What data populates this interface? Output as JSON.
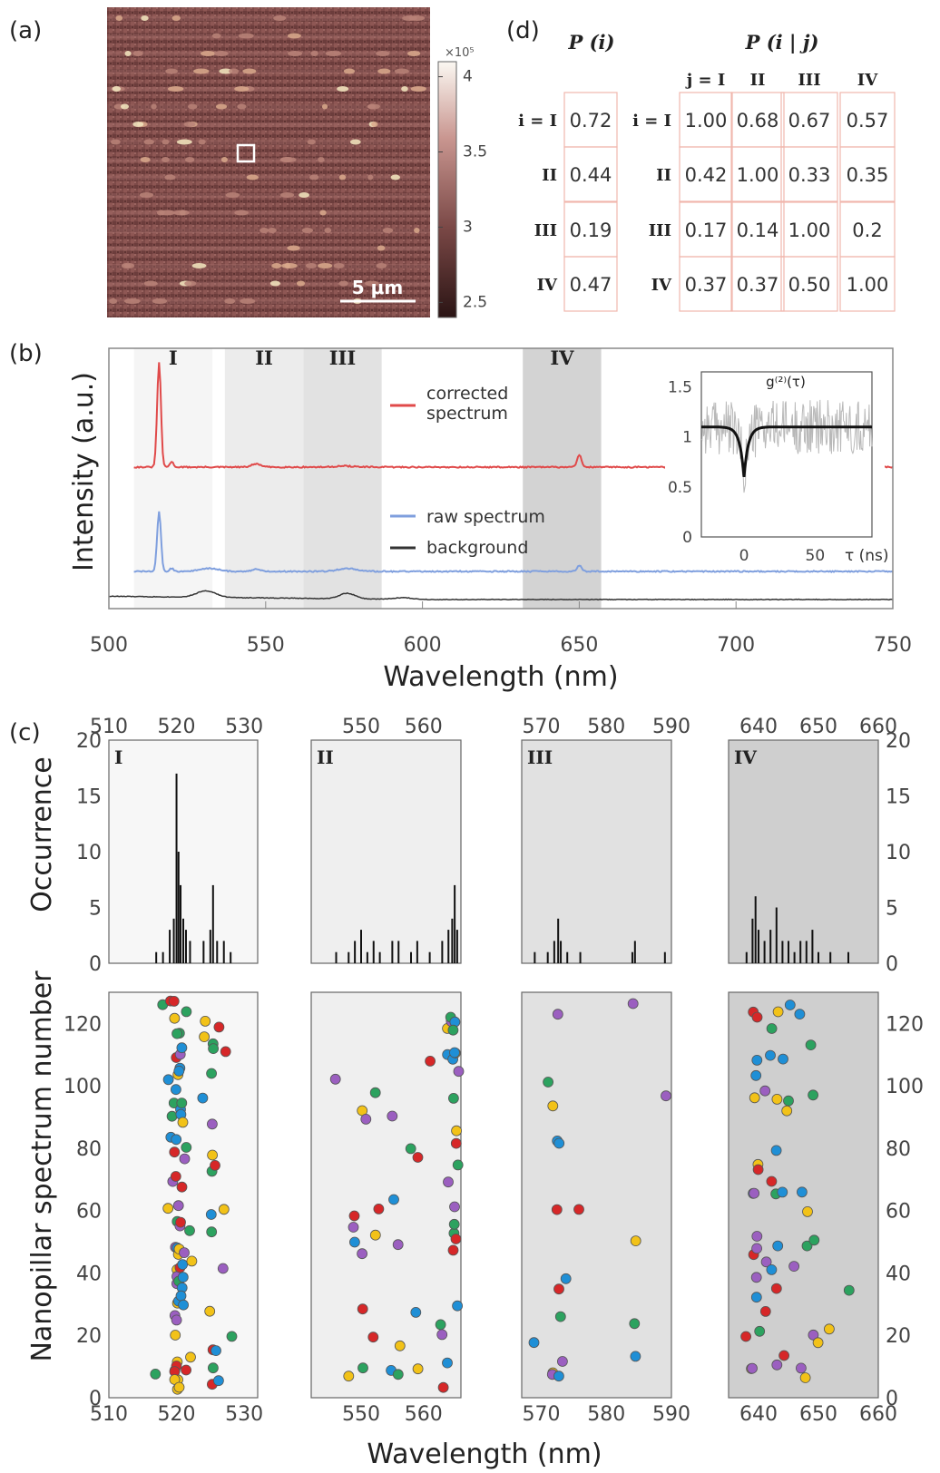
{
  "panels": {
    "a": "(a)",
    "b": "(b)",
    "c": "(c)",
    "d": "(d)"
  },
  "colors": {
    "red": "#d62728",
    "blue": "#1f8fd6",
    "yellow": "#f2c218",
    "green": "#2ca25f",
    "purple": "#9b5fc0",
    "corrected": "#e04a4a",
    "raw": "#7f9fde",
    "background": "#333333",
    "table_border": "#f1b7ad"
  },
  "chart_data": [
    {
      "type": "heatmap",
      "panel": "a",
      "scalebar": "5 μm",
      "colorbar": {
        "exponent": "×10⁵",
        "ticks": [
          4,
          3.5,
          3,
          2.5
        ],
        "range": [
          2.4,
          4.1
        ]
      }
    },
    {
      "type": "line",
      "panel": "b",
      "xlabel": "Wavelength (nm)",
      "ylabel": "Intensity (a.u.)",
      "xlim": [
        500,
        750
      ],
      "xticks": [
        500,
        550,
        600,
        650,
        700,
        750
      ],
      "bands": [
        {
          "label": "I",
          "range": [
            508,
            533
          ]
        },
        {
          "label": "II",
          "range": [
            537,
            562
          ]
        },
        {
          "label": "III",
          "range": [
            562,
            587
          ]
        },
        {
          "label": "IV",
          "range": [
            632,
            657
          ]
        }
      ],
      "series": [
        {
          "name": "corrected spectrum",
          "name_line1": "corrected",
          "name_line2": "spectrum",
          "baseline": 0.74,
          "peaks": [
            [
              516,
              1.0,
              0.6
            ],
            [
              520,
              0.05,
              0.6
            ],
            [
              547,
              0.03,
              1.5
            ],
            [
              575,
              0.01,
              3
            ],
            [
              650,
              0.12,
              0.7
            ]
          ]
        },
        {
          "name": "raw spectrum",
          "baseline": 0.3,
          "peaks": [
            [
              516,
              0.6,
              0.6
            ],
            [
              520,
              0.03,
              0.6
            ],
            [
              532,
              0.03,
              3
            ],
            [
              547,
              0.02,
              1.5
            ],
            [
              576,
              0.03,
              3
            ],
            [
              650,
              0.06,
              0.7
            ]
          ]
        },
        {
          "name": "background",
          "baseline": 0.0,
          "peaks": [
            [
              531,
              0.12,
              3
            ],
            [
              576,
              0.1,
              2.5
            ],
            [
              594,
              0.03,
              3
            ]
          ]
        }
      ],
      "inset": {
        "title": "g⁽²⁾(τ)",
        "xlabel": "τ (ns)",
        "xticks": [
          0,
          50
        ],
        "yticks": [
          0,
          0.5,
          1,
          1.5
        ],
        "xlim": [
          -30,
          90
        ],
        "ylim": [
          0,
          1.65
        ],
        "fit": {
          "baseline": 1.1,
          "dip_min": 0.6,
          "tau": 3
        }
      }
    },
    {
      "type": "bar",
      "panel": "c",
      "ylabel_top": "Occurrence",
      "ylabel_bottom": "Nanopillar spectrum number",
      "xlabel": "Wavelength (nm)",
      "occurrence_ylim": [
        0,
        20
      ],
      "occurrence_ticks": [
        0,
        5,
        10,
        15,
        20
      ],
      "spectrum_ylim": [
        0,
        130
      ],
      "spectrum_ticks": [
        0,
        20,
        40,
        60,
        80,
        100,
        120
      ],
      "subpanels": [
        {
          "label": "I",
          "xlim": [
            510,
            532
          ],
          "xticks": [
            510,
            520,
            530
          ],
          "histogram": [
            [
              517,
              1
            ],
            [
              518,
              1
            ],
            [
              519,
              3
            ],
            [
              519.6,
              4
            ],
            [
              520,
              17
            ],
            [
              520.3,
              10
            ],
            [
              520.6,
              7
            ],
            [
              521,
              4
            ],
            [
              521.4,
              3
            ],
            [
              522,
              2
            ],
            [
              524,
              2
            ],
            [
              525,
              3
            ],
            [
              525.4,
              7
            ],
            [
              526,
              2
            ],
            [
              527,
              2
            ],
            [
              528,
              1
            ]
          ]
        },
        {
          "label": "II",
          "xlim": [
            542,
            566
          ],
          "xticks": [
            550,
            560
          ],
          "histogram": [
            [
              546,
              1
            ],
            [
              548,
              1
            ],
            [
              549,
              2
            ],
            [
              550,
              3
            ],
            [
              551,
              1
            ],
            [
              552,
              2
            ],
            [
              553,
              1
            ],
            [
              555,
              2
            ],
            [
              556,
              2
            ],
            [
              558,
              1
            ],
            [
              559,
              2
            ],
            [
              561,
              1
            ],
            [
              563,
              2
            ],
            [
              564,
              3
            ],
            [
              564.6,
              4
            ],
            [
              565,
              7
            ],
            [
              565.4,
              3
            ]
          ]
        },
        {
          "label": "III",
          "xlim": [
            567,
            590
          ],
          "xticks": [
            570,
            580,
            590
          ],
          "histogram": [
            [
              569,
              1
            ],
            [
              571,
              1
            ],
            [
              572,
              2
            ],
            [
              572.6,
              4
            ],
            [
              573,
              2
            ],
            [
              574,
              1
            ],
            [
              576,
              1
            ],
            [
              584,
              1
            ],
            [
              584.4,
              2
            ],
            [
              589,
              1
            ]
          ]
        },
        {
          "label": "IV",
          "xlim": [
            635,
            660
          ],
          "xticks": [
            640,
            650,
            660
          ],
          "histogram": [
            [
              638,
              1
            ],
            [
              639,
              4
            ],
            [
              639.5,
              6
            ],
            [
              640,
              3
            ],
            [
              641,
              2
            ],
            [
              642,
              3
            ],
            [
              643,
              5
            ],
            [
              644,
              2
            ],
            [
              645,
              2
            ],
            [
              646,
              1
            ],
            [
              647,
              2
            ],
            [
              648,
              2
            ],
            [
              649,
              3
            ],
            [
              650,
              1
            ],
            [
              652,
              1
            ],
            [
              655,
              1
            ]
          ]
        }
      ]
    }
  ],
  "table": {
    "p_i_title": "P (i)",
    "p_ij_title": "P (i | j)",
    "col_headers": [
      "j = I",
      "II",
      "III",
      "IV"
    ],
    "row_headers_left": [
      "i = I",
      "II",
      "III",
      "IV"
    ],
    "row_headers_right": [
      "i = I",
      "II",
      "III",
      "IV"
    ],
    "p_i": [
      "0.72",
      "0.44",
      "0.19",
      "0.47"
    ],
    "p_ij": [
      [
        "1.00",
        "0.68",
        "0.67",
        "0.57"
      ],
      [
        "0.42",
        "1.00",
        "0.33",
        "0.35"
      ],
      [
        "0.17",
        "0.14",
        "1.00",
        "0.2"
      ],
      [
        "0.37",
        "0.37",
        "0.50",
        "1.00"
      ]
    ]
  }
}
